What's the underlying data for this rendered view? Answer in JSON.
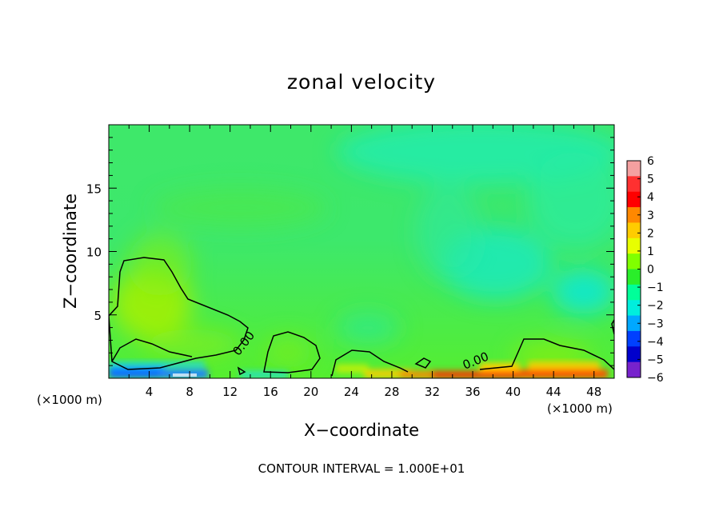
{
  "chart_data": {
    "type": "heatmap",
    "title": "zonal velocity",
    "xlabel": "X−coordinate",
    "ylabel": "Z−coordinate",
    "x_unit_left": "(×1000 m)",
    "x_unit_right": "(×1000 m)",
    "x_ticks": [
      4,
      8,
      12,
      16,
      20,
      24,
      28,
      32,
      36,
      40,
      44,
      48
    ],
    "y_ticks": [
      5,
      10,
      15
    ],
    "xlim": [
      0,
      50
    ],
    "ylim": [
      0,
      20
    ],
    "colorbar": {
      "ticks": [
        6,
        5,
        4,
        3,
        2,
        1,
        0,
        -1,
        -2,
        -3,
        -4,
        -5,
        -6
      ],
      "labels": [
        "6",
        "5",
        "4",
        "3",
        "2",
        "1",
        "0",
        "−1",
        "−2",
        "−3",
        "−4",
        "−5",
        "−6"
      ],
      "colors": [
        "#f4a0a0",
        "#ff3030",
        "#ff0000",
        "#ff8800",
        "#ffcc00",
        "#e8ff00",
        "#80ff00",
        "#2aee2a",
        "#00ff99",
        "#00eedd",
        "#00a8ff",
        "#0040ff",
        "#0000cc",
        "#7722cc"
      ]
    },
    "contour_labels": [
      "0.00",
      "0.00"
    ],
    "contour_interval_text": "CONTOUR INTERVAL = 1.000E+01"
  }
}
